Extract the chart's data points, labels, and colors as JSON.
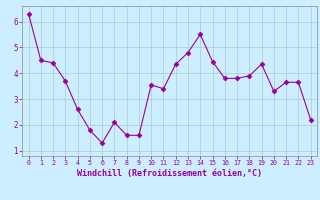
{
  "x": [
    0,
    1,
    2,
    3,
    4,
    5,
    6,
    7,
    8,
    9,
    10,
    11,
    12,
    13,
    14,
    15,
    16,
    17,
    18,
    19,
    20,
    21,
    22,
    23
  ],
  "y": [
    6.3,
    4.5,
    4.4,
    3.7,
    2.6,
    1.8,
    1.3,
    2.1,
    1.6,
    1.6,
    3.55,
    3.4,
    4.35,
    4.8,
    5.5,
    4.45,
    3.8,
    3.8,
    3.9,
    4.35,
    3.3,
    3.65,
    3.65,
    2.2
  ],
  "line_color": "#990099",
  "marker": "D",
  "marker_size": 2.5,
  "bg_color": "#cceeff",
  "grid_color": "#aacccc",
  "xlabel": "Windchill (Refroidissement éolien,°C)",
  "xlabel_color": "#990099",
  "tick_color": "#990099",
  "label_color": "#990099",
  "ylim": [
    0.8,
    6.6
  ],
  "xlim": [
    -0.5,
    23.5
  ],
  "yticks": [
    1,
    2,
    3,
    4,
    5,
    6
  ],
  "xticks": [
    0,
    1,
    2,
    3,
    4,
    5,
    6,
    7,
    8,
    9,
    10,
    11,
    12,
    13,
    14,
    15,
    16,
    17,
    18,
    19,
    20,
    21,
    22,
    23
  ]
}
